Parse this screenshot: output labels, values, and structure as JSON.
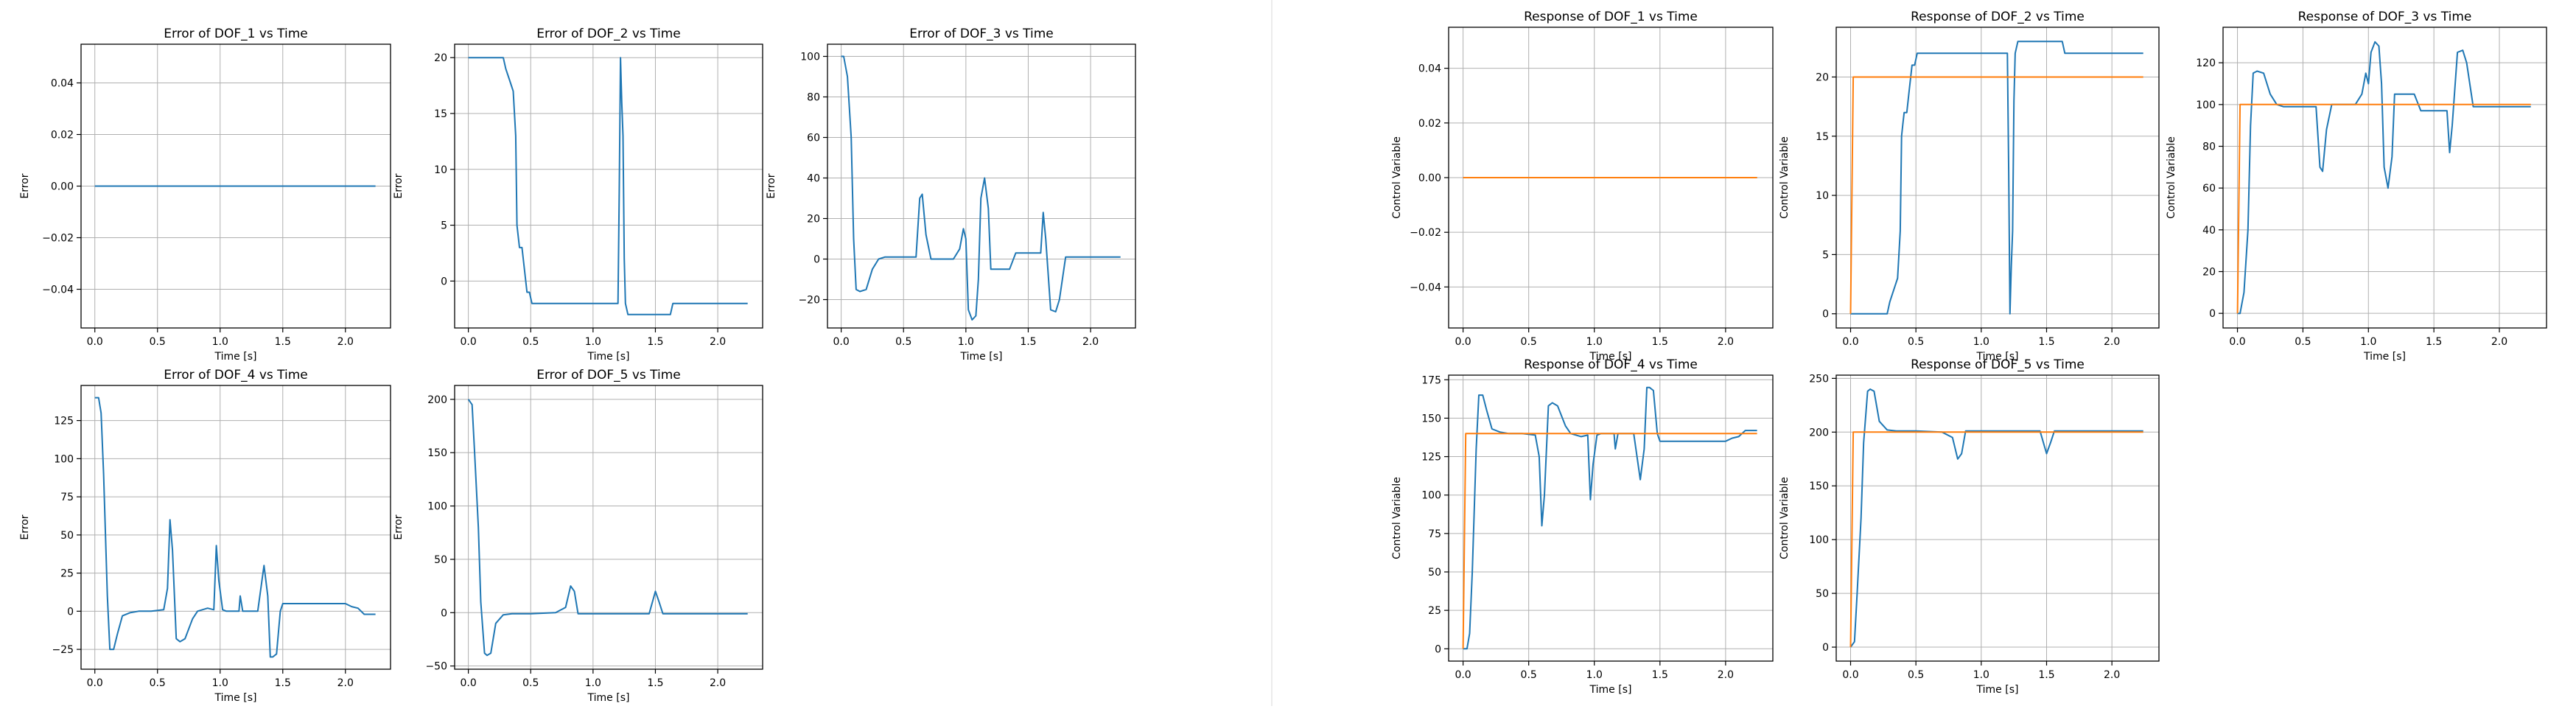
{
  "colors": {
    "blue": "#1f77b4",
    "orange": "#ff7f0e",
    "grid": "#b0b0b0"
  },
  "chart_data": [
    {
      "type": "line",
      "title": "Error of DOF_1 vs Time",
      "xlabel": "Time [s]",
      "ylabel": "Error",
      "xlim": [
        -0.11,
        2.36
      ],
      "ylim": [
        -0.055,
        0.055
      ],
      "grid": true,
      "xticks": [
        0.0,
        0.5,
        1.0,
        1.5,
        2.0
      ],
      "xtick_labels": [
        "0.0",
        "0.5",
        "1.0",
        "1.5",
        "2.0"
      ],
      "yticks": [
        -0.04,
        -0.02,
        0.0,
        0.02,
        0.04
      ],
      "ytick_labels": [
        "−0.04",
        "−0.02",
        "0.00",
        "0.02",
        "0.04"
      ],
      "series": [
        {
          "color": "blue",
          "x": [
            0.0,
            2.24
          ],
          "y": [
            0.0,
            0.0
          ]
        }
      ]
    },
    {
      "type": "line",
      "title": "Error of DOF_2 vs Time",
      "xlabel": "Time [s]",
      "ylabel": "Error",
      "xlim": [
        -0.11,
        2.36
      ],
      "ylim": [
        -4.2,
        21.2
      ],
      "grid": true,
      "xticks": [
        0.0,
        0.5,
        1.0,
        1.5,
        2.0
      ],
      "xtick_labels": [
        "0.0",
        "0.5",
        "1.0",
        "1.5",
        "2.0"
      ],
      "yticks": [
        0,
        5,
        10,
        15,
        20
      ],
      "ytick_labels": [
        "0",
        "5",
        "10",
        "15",
        "20"
      ],
      "series": [
        {
          "color": "blue",
          "x": [
            0.0,
            0.15,
            0.28,
            0.3,
            0.33,
            0.36,
            0.38,
            0.39,
            0.4,
            0.41,
            0.43,
            0.45,
            0.46,
            0.47,
            0.49,
            0.51,
            0.53,
            0.56,
            1.2,
            1.21,
            1.22,
            1.23,
            1.24,
            1.25,
            1.26,
            1.28,
            1.4,
            1.62,
            1.64,
            2.24
          ],
          "y": [
            20,
            20,
            20,
            19,
            18,
            17,
            13,
            5,
            4,
            3,
            3,
            1,
            0,
            -1,
            -1,
            -2,
            -2,
            -2,
            -2,
            8,
            20,
            16,
            13,
            2,
            -2,
            -3,
            -3,
            -3,
            -2,
            -2
          ]
        }
      ]
    },
    {
      "type": "line",
      "title": "Error of DOF_3 vs Time",
      "xlabel": "Time [s]",
      "ylabel": "Error",
      "xlim": [
        -0.11,
        2.36
      ],
      "ylim": [
        -34,
        106
      ],
      "grid": true,
      "xticks": [
        0.0,
        0.5,
        1.0,
        1.5,
        2.0
      ],
      "xtick_labels": [
        "0.0",
        "0.5",
        "1.0",
        "1.5",
        "2.0"
      ],
      "yticks": [
        -20,
        0,
        20,
        40,
        60,
        80,
        100
      ],
      "ytick_labels": [
        "−20",
        "0",
        "20",
        "40",
        "60",
        "80",
        "100"
      ],
      "series": [
        {
          "color": "blue",
          "x": [
            0.0,
            0.02,
            0.05,
            0.08,
            0.1,
            0.12,
            0.15,
            0.2,
            0.25,
            0.3,
            0.35,
            0.4,
            0.5,
            0.6,
            0.63,
            0.65,
            0.68,
            0.72,
            0.8,
            0.9,
            0.95,
            0.98,
            1.0,
            1.02,
            1.05,
            1.08,
            1.1,
            1.12,
            1.15,
            1.18,
            1.2,
            1.25,
            1.35,
            1.4,
            1.42,
            1.45,
            1.5,
            1.6,
            1.62,
            1.64,
            1.68,
            1.72,
            1.75,
            1.8,
            1.85,
            2.24
          ],
          "y": [
            100,
            100,
            90,
            60,
            10,
            -15,
            -16,
            -15,
            -5,
            0,
            1,
            1,
            1,
            1,
            30,
            32,
            12,
            0,
            0,
            0,
            5,
            15,
            10,
            -25,
            -30,
            -28,
            -10,
            30,
            40,
            25,
            -5,
            -5,
            -5,
            3,
            3,
            3,
            3,
            3,
            23,
            10,
            -25,
            -26,
            -20,
            1,
            1,
            1
          ]
        }
      ]
    },
    {
      "type": "line",
      "title": "Error of DOF_4 vs Time",
      "xlabel": "Time [s]",
      "ylabel": "Error",
      "xlim": [
        -0.11,
        2.36
      ],
      "ylim": [
        -38,
        148
      ],
      "grid": true,
      "xticks": [
        0.0,
        0.5,
        1.0,
        1.5,
        2.0
      ],
      "xtick_labels": [
        "0.0",
        "0.5",
        "1.0",
        "1.5",
        "2.0"
      ],
      "yticks": [
        -25,
        0,
        25,
        50,
        75,
        100,
        125
      ],
      "ytick_labels": [
        "−25",
        "0",
        "25",
        "50",
        "75",
        "100",
        "125"
      ],
      "series": [
        {
          "color": "blue",
          "x": [
            0.0,
            0.03,
            0.05,
            0.07,
            0.1,
            0.12,
            0.15,
            0.18,
            0.22,
            0.28,
            0.35,
            0.45,
            0.55,
            0.58,
            0.6,
            0.62,
            0.65,
            0.68,
            0.72,
            0.78,
            0.82,
            0.9,
            0.95,
            0.97,
            0.99,
            1.02,
            1.05,
            1.08,
            1.15,
            1.16,
            1.18,
            1.2,
            1.25,
            1.3,
            1.35,
            1.38,
            1.4,
            1.42,
            1.45,
            1.48,
            1.5,
            1.6,
            1.9,
            2.0,
            2.05,
            2.1,
            2.15,
            2.24
          ],
          "y": [
            140,
            140,
            130,
            90,
            10,
            -25,
            -25,
            -15,
            -3,
            -1,
            0,
            0,
            1,
            15,
            60,
            40,
            -18,
            -20,
            -18,
            -5,
            0,
            2,
            1,
            43,
            20,
            1,
            0,
            0,
            0,
            10,
            0,
            0,
            0,
            0,
            30,
            10,
            -30,
            -30,
            -28,
            0,
            5,
            5,
            5,
            5,
            3,
            2,
            -2,
            -2
          ]
        }
      ]
    },
    {
      "type": "line",
      "title": "Error of DOF_5 vs Time",
      "xlabel": "Time [s]",
      "ylabel": "Error",
      "xlim": [
        -0.11,
        2.36
      ],
      "ylim": [
        -53,
        213
      ],
      "grid": true,
      "xticks": [
        0.0,
        0.5,
        1.0,
        1.5,
        2.0
      ],
      "xtick_labels": [
        "0.0",
        "0.5",
        "1.0",
        "1.5",
        "2.0"
      ],
      "yticks": [
        -50,
        0,
        50,
        100,
        150,
        200
      ],
      "ytick_labels": [
        "−50",
        "0",
        "50",
        "100",
        "150",
        "200"
      ],
      "series": [
        {
          "color": "blue",
          "x": [
            0.0,
            0.03,
            0.05,
            0.08,
            0.1,
            0.13,
            0.15,
            0.18,
            0.22,
            0.28,
            0.35,
            0.5,
            0.7,
            0.78,
            0.82,
            0.85,
            0.88,
            0.95,
            1.2,
            1.45,
            1.5,
            1.53,
            1.56,
            1.6,
            2.24
          ],
          "y": [
            200,
            195,
            150,
            80,
            10,
            -38,
            -40,
            -38,
            -10,
            -2,
            -1,
            -1,
            0,
            5,
            25,
            20,
            -1,
            -1,
            -1,
            -1,
            20,
            10,
            -1,
            -1,
            -1
          ]
        }
      ]
    },
    {
      "type": "line",
      "title": "Response of DOF_1 vs Time",
      "xlabel": "Time [s]",
      "ylabel": "Control Variable",
      "xlim": [
        -0.11,
        2.36
      ],
      "ylim": [
        -0.055,
        0.055
      ],
      "grid": true,
      "xticks": [
        0.0,
        0.5,
        1.0,
        1.5,
        2.0
      ],
      "xtick_labels": [
        "0.0",
        "0.5",
        "1.0",
        "1.5",
        "2.0"
      ],
      "yticks": [
        -0.04,
        -0.02,
        0.0,
        0.02,
        0.04
      ],
      "ytick_labels": [
        "−0.04",
        "−0.02",
        "0.00",
        "0.02",
        "0.04"
      ],
      "series": [
        {
          "color": "blue",
          "x": [
            0.0,
            2.24
          ],
          "y": [
            0.0,
            0.0
          ]
        },
        {
          "color": "orange",
          "x": [
            0.0,
            2.24
          ],
          "y": [
            0.0,
            0.0
          ]
        }
      ]
    },
    {
      "type": "line",
      "title": "Response of DOF_2 vs Time",
      "xlabel": "Time [s]",
      "ylabel": "Control Variable",
      "xlim": [
        -0.11,
        2.36
      ],
      "ylim": [
        -1.2,
        24.2
      ],
      "grid": true,
      "xticks": [
        0.0,
        0.5,
        1.0,
        1.5,
        2.0
      ],
      "xtick_labels": [
        "0.0",
        "0.5",
        "1.0",
        "1.5",
        "2.0"
      ],
      "yticks": [
        0,
        5,
        10,
        15,
        20
      ],
      "ytick_labels": [
        "0",
        "5",
        "10",
        "15",
        "20"
      ],
      "series": [
        {
          "color": "blue",
          "x": [
            0.0,
            0.15,
            0.28,
            0.3,
            0.33,
            0.36,
            0.38,
            0.39,
            0.4,
            0.41,
            0.43,
            0.45,
            0.46,
            0.47,
            0.49,
            0.51,
            0.53,
            0.56,
            1.2,
            1.21,
            1.22,
            1.23,
            1.24,
            1.25,
            1.26,
            1.28,
            1.4,
            1.62,
            1.64,
            2.24
          ],
          "y": [
            0,
            0,
            0,
            1,
            2,
            3,
            7,
            15,
            16,
            17,
            17,
            19,
            20,
            21,
            21,
            22,
            22,
            22,
            22,
            12,
            0,
            4,
            7,
            18,
            22,
            23,
            23,
            23,
            22,
            22
          ]
        },
        {
          "color": "orange",
          "x": [
            0.0,
            0.02,
            2.24
          ],
          "y": [
            0,
            20,
            20
          ]
        }
      ]
    },
    {
      "type": "line",
      "title": "Response of DOF_3 vs Time",
      "xlabel": "Time [s]",
      "ylabel": "Control Variable",
      "xlim": [
        -0.11,
        2.36
      ],
      "ylim": [
        -7,
        137
      ],
      "grid": true,
      "xticks": [
        0.0,
        0.5,
        1.0,
        1.5,
        2.0
      ],
      "xtick_labels": [
        "0.0",
        "0.5",
        "1.0",
        "1.5",
        "2.0"
      ],
      "yticks": [
        0,
        20,
        40,
        60,
        80,
        100,
        120
      ],
      "ytick_labels": [
        "0",
        "20",
        "40",
        "60",
        "80",
        "100",
        "120"
      ],
      "series": [
        {
          "color": "blue",
          "x": [
            0.0,
            0.02,
            0.05,
            0.08,
            0.1,
            0.12,
            0.15,
            0.2,
            0.25,
            0.3,
            0.35,
            0.4,
            0.5,
            0.6,
            0.63,
            0.65,
            0.68,
            0.72,
            0.8,
            0.9,
            0.95,
            0.98,
            1.0,
            1.02,
            1.05,
            1.08,
            1.1,
            1.12,
            1.15,
            1.18,
            1.2,
            1.25,
            1.35,
            1.4,
            1.42,
            1.45,
            1.5,
            1.6,
            1.62,
            1.64,
            1.68,
            1.72,
            1.75,
            1.8,
            1.85,
            2.24
          ],
          "y": [
            0,
            0,
            10,
            40,
            90,
            115,
            116,
            115,
            105,
            100,
            99,
            99,
            99,
            99,
            70,
            68,
            88,
            100,
            100,
            100,
            105,
            115,
            110,
            125,
            130,
            128,
            110,
            70,
            60,
            75,
            105,
            105,
            105,
            97,
            97,
            97,
            97,
            97,
            77,
            90,
            125,
            126,
            120,
            99,
            99,
            99
          ]
        },
        {
          "color": "orange",
          "x": [
            0.0,
            0.02,
            2.24
          ],
          "y": [
            0,
            100,
            100
          ]
        }
      ]
    },
    {
      "type": "line",
      "title": "Response of DOF_4 vs Time",
      "xlabel": "Time [s]",
      "ylabel": "Control Variable",
      "xlim": [
        -0.11,
        2.36
      ],
      "ylim": [
        -8,
        178
      ],
      "grid": true,
      "xticks": [
        0.0,
        0.5,
        1.0,
        1.5,
        2.0
      ],
      "xtick_labels": [
        "0.0",
        "0.5",
        "1.0",
        "1.5",
        "2.0"
      ],
      "yticks": [
        0,
        25,
        50,
        75,
        100,
        125,
        150,
        175
      ],
      "ytick_labels": [
        "0",
        "25",
        "50",
        "75",
        "100",
        "125",
        "150",
        "175"
      ],
      "series": [
        {
          "color": "blue",
          "x": [
            0.0,
            0.03,
            0.05,
            0.07,
            0.1,
            0.12,
            0.15,
            0.18,
            0.22,
            0.28,
            0.35,
            0.45,
            0.55,
            0.58,
            0.6,
            0.62,
            0.65,
            0.68,
            0.72,
            0.78,
            0.82,
            0.9,
            0.95,
            0.97,
            0.99,
            1.02,
            1.05,
            1.08,
            1.15,
            1.16,
            1.18,
            1.2,
            1.25,
            1.3,
            1.35,
            1.38,
            1.4,
            1.42,
            1.45,
            1.48,
            1.5,
            1.6,
            1.9,
            2.0,
            2.05,
            2.1,
            2.15,
            2.24
          ],
          "y": [
            0,
            0,
            10,
            50,
            130,
            165,
            165,
            155,
            143,
            141,
            140,
            140,
            139,
            125,
            80,
            100,
            158,
            160,
            158,
            145,
            140,
            138,
            139,
            97,
            120,
            139,
            140,
            140,
            140,
            130,
            140,
            140,
            140,
            140,
            110,
            130,
            170,
            170,
            168,
            140,
            135,
            135,
            135,
            135,
            137,
            138,
            142,
            142
          ]
        },
        {
          "color": "orange",
          "x": [
            0.0,
            0.02,
            2.24
          ],
          "y": [
            0,
            140,
            140
          ]
        }
      ]
    },
    {
      "type": "line",
      "title": "Response of DOF_5 vs Time",
      "xlabel": "Time [s]",
      "ylabel": "Control Variable",
      "xlim": [
        -0.11,
        2.36
      ],
      "ylim": [
        -13,
        253
      ],
      "grid": true,
      "xticks": [
        0.0,
        0.5,
        1.0,
        1.5,
        2.0
      ],
      "xtick_labels": [
        "0.0",
        "0.5",
        "1.0",
        "1.5",
        "2.0"
      ],
      "yticks": [
        0,
        50,
        100,
        150,
        200,
        250
      ],
      "ytick_labels": [
        "0",
        "50",
        "100",
        "150",
        "200",
        "250"
      ],
      "series": [
        {
          "color": "blue",
          "x": [
            0.0,
            0.03,
            0.05,
            0.08,
            0.1,
            0.13,
            0.15,
            0.18,
            0.22,
            0.28,
            0.35,
            0.5,
            0.7,
            0.78,
            0.82,
            0.85,
            0.88,
            0.95,
            1.2,
            1.45,
            1.5,
            1.53,
            1.56,
            1.6,
            2.24
          ],
          "y": [
            0,
            5,
            50,
            120,
            190,
            238,
            240,
            238,
            210,
            202,
            201,
            201,
            200,
            195,
            175,
            180,
            201,
            201,
            201,
            201,
            180,
            190,
            201,
            201,
            201
          ]
        },
        {
          "color": "orange",
          "x": [
            0.0,
            0.02,
            2.24
          ],
          "y": [
            0,
            200,
            200
          ]
        }
      ]
    }
  ]
}
